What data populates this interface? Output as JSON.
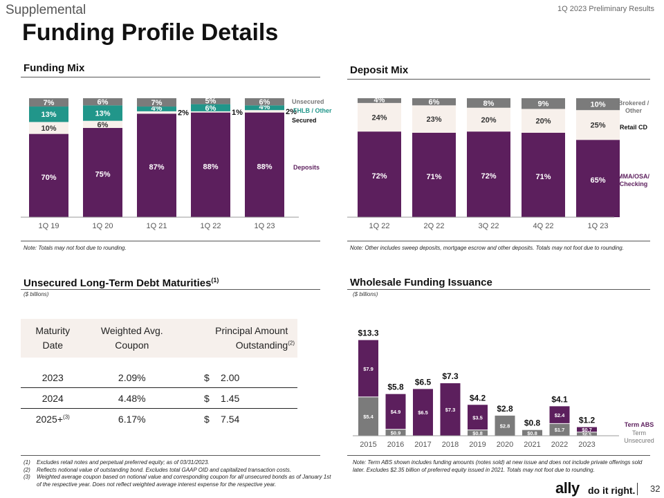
{
  "header": {
    "section": "Supplemental",
    "subtitle": "1Q 2023 Preliminary Results",
    "title": "Funding Profile Details"
  },
  "chart_data": [
    {
      "type": "bar",
      "stacked": true,
      "title": "Funding Mix",
      "categories": [
        "1Q 19",
        "1Q 20",
        "1Q 21",
        "1Q 22",
        "1Q 23"
      ],
      "series": [
        {
          "name": "Deposits",
          "values": [
            70,
            75,
            87,
            88,
            88
          ],
          "labels": [
            "70%",
            "75%",
            "87%",
            "88%",
            "88%"
          ],
          "color": "#5c1f5d"
        },
        {
          "name": "Secured",
          "values": [
            10,
            6,
            2,
            1,
            2
          ],
          "labels": [
            "10%",
            "6%",
            "2%",
            "1%",
            "2%"
          ],
          "color": "#f7f0eb"
        },
        {
          "name": "FHLB / Other",
          "values": [
            13,
            13,
            4,
            6,
            4
          ],
          "labels": [
            "13%",
            "13%",
            "4%",
            "6%",
            "4%"
          ],
          "color": "#21968a"
        },
        {
          "name": "Unsecured",
          "values": [
            7,
            6,
            7,
            5,
            6
          ],
          "labels": [
            "7%",
            "6%",
            "7%",
            "5%",
            "6%"
          ],
          "color": "#7b7b7b"
        }
      ],
      "note": "Note: Totals may not foot due to rounding."
    },
    {
      "type": "bar",
      "stacked": true,
      "title": "Deposit Mix",
      "categories": [
        "1Q 22",
        "2Q 22",
        "3Q 22",
        "4Q 22",
        "1Q 23"
      ],
      "series": [
        {
          "name": "MMA/OSA/ Checking",
          "values": [
            72,
            71,
            72,
            71,
            65
          ],
          "labels": [
            "72%",
            "71%",
            "72%",
            "71%",
            "65%"
          ],
          "color": "#5c1f5d"
        },
        {
          "name": "Retail CD",
          "values": [
            24,
            23,
            20,
            20,
            25
          ],
          "labels": [
            "24%",
            "23%",
            "20%",
            "20%",
            "25%"
          ],
          "color": "#f7f0eb"
        },
        {
          "name": "Brokered / Other",
          "values": [
            4,
            6,
            8,
            9,
            10
          ],
          "labels": [
            "4%",
            "6%",
            "8%",
            "9%",
            "10%"
          ],
          "color": "#7b7b7b"
        }
      ],
      "note": "Note: Other includes sweep deposits, mortgage escrow and other deposits. Totals may not foot due to rounding."
    },
    {
      "type": "table",
      "title": "Unsecured Long-Term Debt Maturities",
      "title_sup": "(1)",
      "subtitle": "($ billions)",
      "columns": [
        {
          "text": "Maturity Date",
          "sup": ""
        },
        {
          "text": "Weighted Avg. Coupon",
          "sup": ""
        },
        {
          "text": "Principal Amount Outstanding",
          "sup": "(2)"
        }
      ],
      "rows": [
        {
          "year": "2023",
          "year_sup": "",
          "coupon": "2.09%",
          "currency": "$",
          "amount": "2.00"
        },
        {
          "year": "2024",
          "year_sup": "",
          "coupon": "4.48%",
          "currency": "$",
          "amount": "1.45"
        },
        {
          "year": "2025+",
          "year_sup": "(3)",
          "coupon": "6.17%",
          "currency": "$",
          "amount": "7.54"
        }
      ]
    },
    {
      "type": "bar",
      "stacked": true,
      "title": "Wholesale Funding Issuance",
      "subtitle": "($ billions)",
      "categories": [
        "2015",
        "2016",
        "2017",
        "2018",
        "2019",
        "2020",
        "2021",
        "2022",
        "2023"
      ],
      "totals": [
        13.3,
        5.8,
        6.5,
        7.3,
        4.2,
        2.8,
        0.8,
        4.1,
        1.2
      ],
      "total_labels": [
        "$13.3",
        "$5.8",
        "$6.5",
        "$7.3",
        "$4.2",
        "$2.8",
        "$0.8",
        "$4.1",
        "$1.2"
      ],
      "series": [
        {
          "name": "Term Unsecured",
          "values": [
            5.4,
            0.9,
            0,
            0,
            0.8,
            2.8,
            0.8,
            1.7,
            0.5
          ],
          "labels": [
            "$5.4",
            "$0.9",
            "",
            "",
            "$0.8",
            "$2.8",
            "$0.8",
            "$1.7",
            "$0.5"
          ],
          "color": "#7b7b7b"
        },
        {
          "name": "Term ABS",
          "values": [
            7.9,
            4.9,
            6.5,
            7.3,
            3.5,
            0,
            0,
            2.4,
            0.7
          ],
          "labels": [
            "$7.9",
            "$4.9",
            "$6.5",
            "$7.3",
            "$3.5",
            "",
            "",
            "$2.4",
            "$0.7"
          ],
          "color": "#5c1f5d"
        }
      ],
      "note": "Note: Term ABS shown includes funding amounts (notes sold) at new issue and does not include private offerings sold later. Excludes $2.35 billion of preferred equity issued in 2021. Totals may not foot due to rounding."
    }
  ],
  "footnotes": [
    {
      "num": "(1)",
      "text": "Excludes retail notes and perpetual preferred equity; as of 03/31/2023."
    },
    {
      "num": "(2)",
      "text": "Reflects notional value of outstanding bond. Excludes total GAAP OID and capitalized transaction costs."
    },
    {
      "num": "(3)",
      "text": "Weighted average coupon based on notional value and corresponding coupon for all unsecured bonds as of January 1st of the respective year. Does not reflect weighted average interest expense for the respective year."
    }
  ],
  "footer": {
    "logo": "ally",
    "tagline": "do it right.",
    "page": "32"
  }
}
